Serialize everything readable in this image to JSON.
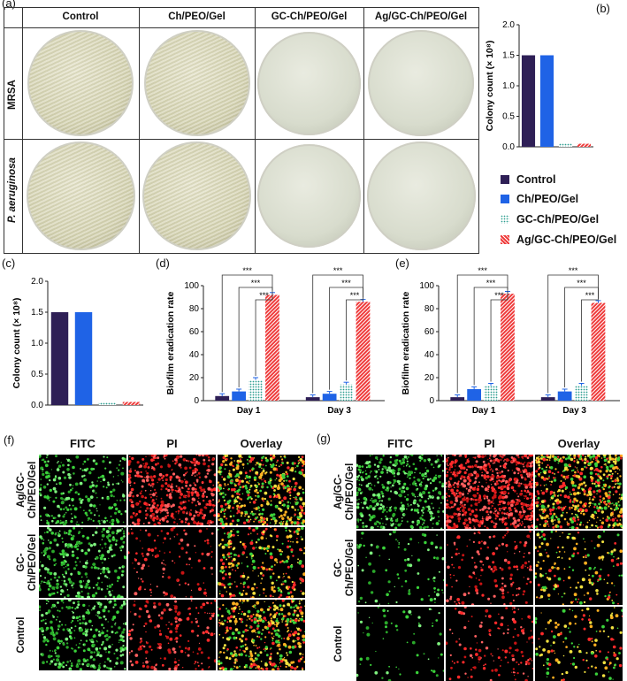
{
  "panel_labels": {
    "a": "(a)",
    "b": "(b)",
    "c": "(c)",
    "d": "(d)",
    "e": "(e)",
    "f": "(f)",
    "g": "(g)"
  },
  "plates": {
    "columns": [
      "Control",
      "Ch/PEO/Gel",
      "GC-Ch/PEO/Gel",
      "Ag/GC-Ch/PEO/Gel"
    ],
    "rows": [
      "MRSA",
      "P. aeruginosa"
    ]
  },
  "legend": {
    "items": [
      {
        "label": "Control",
        "color": "#2e1f56",
        "pattern": "solid"
      },
      {
        "label": "Ch/PEO/Gel",
        "color": "#1f63e6",
        "pattern": "solid"
      },
      {
        "label": "GC-Ch/PEO/Gel",
        "color": "#2a9d8f",
        "pattern": "dots"
      },
      {
        "label": "Ag/GC-Ch/PEO/Gel",
        "color": "#ef3b3b",
        "pattern": "hatch"
      }
    ]
  },
  "chart_data": [
    {
      "id": "b",
      "type": "bar",
      "categories": [
        "Control",
        "Ch/PEO/Gel",
        "GC-Ch/PEO/Gel",
        "Ag/GC-Ch/PEO/Gel"
      ],
      "values": [
        1.5,
        1.5,
        0.05,
        0.05
      ],
      "ylabel": "Colony count (× 10⁸)",
      "ylim": [
        0,
        2.0
      ],
      "yticks": [
        "0.0",
        "0.5",
        "1.0",
        "1.5",
        "2.0"
      ]
    },
    {
      "id": "c",
      "type": "bar",
      "categories": [
        "Control",
        "Ch/PEO/Gel",
        "GC-Ch/PEO/Gel",
        "Ag/GC-Ch/PEO/Gel"
      ],
      "values": [
        1.5,
        1.5,
        0.05,
        0.05
      ],
      "ylabel": "Colony count (× 10⁸)",
      "ylim": [
        0,
        2.0
      ],
      "yticks": [
        "0.0",
        "0.5",
        "1.0",
        "1.5",
        "2.0"
      ]
    },
    {
      "id": "d",
      "type": "bar",
      "categories": [
        "Day 1",
        "Day 3"
      ],
      "series": [
        {
          "values": [
            4,
            3
          ]
        },
        {
          "values": [
            8,
            6
          ]
        },
        {
          "values": [
            18,
            14
          ]
        },
        {
          "values": [
            92,
            86
          ]
        }
      ],
      "ylabel": "Biofilm eradication rate",
      "ylim": [
        0,
        100
      ],
      "yticks": [
        "0",
        "20",
        "40",
        "60",
        "80",
        "100"
      ],
      "significance": "***"
    },
    {
      "id": "e",
      "type": "bar",
      "categories": [
        "Day 1",
        "Day 3"
      ],
      "series": [
        {
          "values": [
            3,
            3
          ]
        },
        {
          "values": [
            10,
            8
          ]
        },
        {
          "values": [
            13,
            13
          ]
        },
        {
          "values": [
            93,
            85
          ]
        }
      ],
      "ylabel": "Biofilm eradication rate",
      "ylim": [
        0,
        100
      ],
      "yticks": [
        "0",
        "20",
        "40",
        "60",
        "80",
        "100"
      ],
      "significance": "***"
    }
  ],
  "micro_f": {
    "columns": [
      "FITC",
      "PI",
      "Overlay"
    ],
    "rows": [
      "Ag/GC-\nCh/PEO/Gel",
      "GC-\nCh/PEO/Gel",
      "Control"
    ]
  },
  "micro_g": {
    "columns": [
      "FITC",
      "PI",
      "Overlay"
    ],
    "rows": [
      "Ag/GC-\nCh/PEO/Gel",
      "GC-\nCh/PEO/Gel",
      "Control"
    ]
  }
}
